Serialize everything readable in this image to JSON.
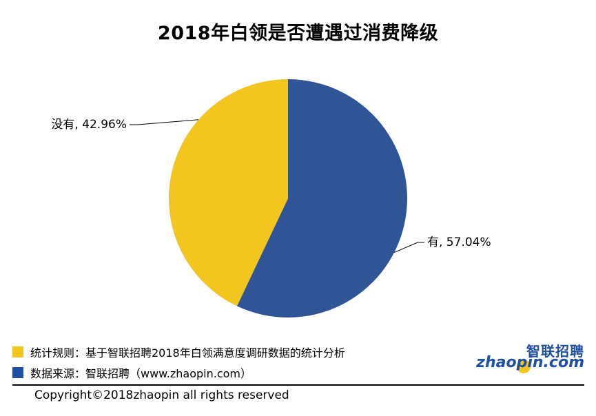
{
  "chart_data": {
    "type": "pie",
    "title": "2018年白领是否遭遇过消费降级",
    "slices": [
      {
        "label": "有",
        "value": 57.04,
        "display": "有, 57.04%",
        "color": "#2f5597"
      },
      {
        "label": "没有",
        "value": 42.96,
        "display": "没有, 42.96%",
        "color": "#f2c51f"
      }
    ],
    "legend": "none",
    "start_angle_deg": 0
  },
  "notes": [
    {
      "text": "统计规则：基于智联招聘2018年白领满意度调研数据的统计分析",
      "color": "#f2c51f"
    },
    {
      "text": "数据来源：智联招聘（www.zhaopin.com）",
      "color": "#1f4fa3"
    }
  ],
  "brand": {
    "cn": "智联招聘",
    "en": "zhaopin.com"
  },
  "footer": {
    "copyright": "Copyright©2018zhaopin all rights reserved"
  }
}
